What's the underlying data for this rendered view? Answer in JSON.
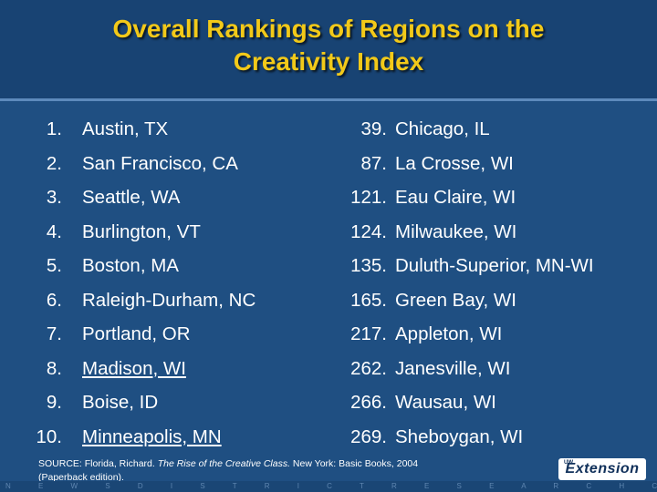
{
  "title": {
    "line1": "Overall Rankings of Regions on the",
    "line2": "Creativity Index"
  },
  "rankings_left": [
    {
      "rank": "1.",
      "region": "Austin, TX",
      "underline": false
    },
    {
      "rank": "2.",
      "region": "San Francisco, CA",
      "underline": false
    },
    {
      "rank": "3.",
      "region": "Seattle, WA",
      "underline": false
    },
    {
      "rank": "4.",
      "region": "Burlington, VT",
      "underline": false
    },
    {
      "rank": "5.",
      "region": "Boston, MA",
      "underline": false
    },
    {
      "rank": "6.",
      "region": "Raleigh-Durham, NC",
      "underline": false
    },
    {
      "rank": "7.",
      "region": "Portland, OR",
      "underline": false
    },
    {
      "rank": "8.",
      "region": "Madison, WI",
      "underline": true
    },
    {
      "rank": "9.",
      "region": "Boise, ID",
      "underline": false
    },
    {
      "rank": "10.",
      "region": "Minneapolis, MN",
      "underline": true
    }
  ],
  "rankings_right": [
    {
      "rank": "39.",
      "region": "Chicago, IL"
    },
    {
      "rank": "87.",
      "region": "La Crosse, WI"
    },
    {
      "rank": "121.",
      "region": "Eau Claire, WI"
    },
    {
      "rank": "124.",
      "region": "Milwaukee, WI"
    },
    {
      "rank": "135.",
      "region": "Duluth-Superior, MN-WI"
    },
    {
      "rank": "165.",
      "region": "Green Bay, WI"
    },
    {
      "rank": "217.",
      "region": "Appleton, WI"
    },
    {
      "rank": "262.",
      "region": "Janesville, WI"
    },
    {
      "rank": "266.",
      "region": "Wausau, WI"
    },
    {
      "rank": "269.",
      "region": "Sheboygan, WI"
    }
  ],
  "source": {
    "prefix": "SOURCE:  Florida, Richard.  ",
    "book_title": "The Rise of the Creative Class.",
    "suffix": "  New York:  Basic Books, 2004",
    "line2": "(Paperback edition)."
  },
  "logo": {
    "small": "UW",
    "text": "Extension"
  },
  "footer_text": "N E W S   D I S T R I C T   R E S E A R C H   C E N T R E",
  "colors": {
    "background": "#1f4f82",
    "title": "#f2c919",
    "text": "#ffffff"
  }
}
